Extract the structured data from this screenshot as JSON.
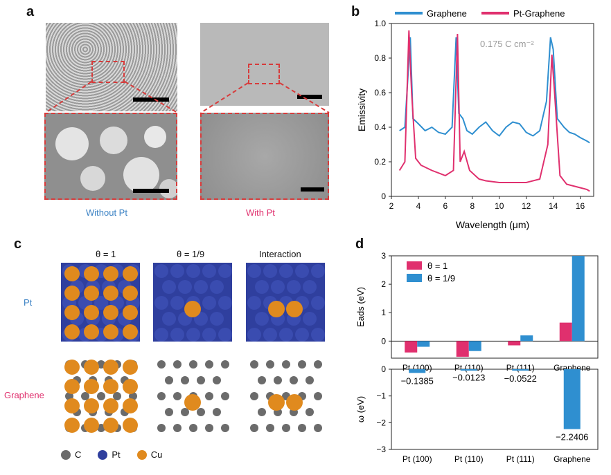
{
  "panels": {
    "a": "a",
    "b": "b",
    "c": "c",
    "d": "d"
  },
  "panel_a": {
    "caption_left": "Without Pt",
    "caption_right": "With Pt",
    "caption_left_color": "#3b82c4",
    "caption_right_color": "#e0306e"
  },
  "panel_c": {
    "col_headers": [
      "θ = 1",
      "θ = 1/9",
      "Interaction"
    ],
    "row_labels": [
      "Pt",
      "Graphene"
    ],
    "row_colors": [
      "#3b82c4",
      "#e0306e"
    ],
    "legend": [
      "C",
      "Pt",
      "Cu"
    ],
    "legend_colors": [
      "#6b6b6b",
      "#2f3f9e",
      "#e08a1e"
    ]
  },
  "chart_data": [
    {
      "type": "line",
      "series": [
        {
          "name": "Graphene",
          "color": "#2f8fd0",
          "x": [
            2.6,
            3.0,
            3.4,
            3.6,
            4.0,
            4.5,
            5.0,
            5.5,
            6.0,
            6.5,
            6.8,
            7.0,
            7.3,
            7.6,
            8.0,
            8.5,
            9.0,
            9.5,
            10.0,
            10.5,
            11.0,
            11.5,
            12.0,
            12.5,
            13.0,
            13.5,
            13.8,
            14.0,
            14.3,
            14.8,
            15.2,
            15.6,
            16.0,
            16.5,
            16.7
          ],
          "y": [
            0.38,
            0.4,
            0.92,
            0.45,
            0.42,
            0.38,
            0.4,
            0.37,
            0.36,
            0.4,
            0.92,
            0.48,
            0.45,
            0.38,
            0.36,
            0.4,
            0.43,
            0.38,
            0.35,
            0.4,
            0.43,
            0.42,
            0.37,
            0.35,
            0.38,
            0.55,
            0.92,
            0.85,
            0.45,
            0.4,
            0.37,
            0.36,
            0.34,
            0.32,
            0.31
          ]
        },
        {
          "name": "Pt-Graphene",
          "color": "#e0306e",
          "x": [
            2.6,
            3.0,
            3.3,
            3.5,
            3.8,
            4.2,
            5.0,
            6.0,
            6.6,
            6.9,
            7.1,
            7.4,
            7.8,
            8.5,
            9.0,
            10.0,
            11.0,
            12.0,
            13.0,
            13.6,
            13.9,
            14.1,
            14.5,
            15.0,
            16.0,
            16.5,
            16.7
          ],
          "y": [
            0.15,
            0.2,
            0.96,
            0.6,
            0.22,
            0.18,
            0.15,
            0.12,
            0.15,
            0.94,
            0.2,
            0.26,
            0.15,
            0.1,
            0.09,
            0.08,
            0.08,
            0.08,
            0.1,
            0.3,
            0.82,
            0.6,
            0.12,
            0.07,
            0.05,
            0.04,
            0.03
          ]
        }
      ],
      "xlabel": "Wavelength (μm)",
      "ylabel": "Emissivity",
      "xlim": [
        2,
        17
      ],
      "ylim": [
        0,
        1.0
      ],
      "xticks": [
        "2",
        "4",
        "6",
        "8",
        "10",
        "12",
        "14",
        "16"
      ],
      "yticks": [
        "0",
        "0.2",
        "0.4",
        "0.6",
        "0.8",
        "1.0"
      ],
      "annotation": "0.175 C cm⁻²",
      "legend_position": "top"
    },
    {
      "type": "bar",
      "categories": [
        "Pt (100)",
        "Pt (110)",
        "Pt (111)",
        "Graphene"
      ],
      "series": [
        {
          "name": "θ = 1",
          "color": "#e0306e",
          "values": [
            -0.4,
            -0.55,
            -0.15,
            0.65
          ]
        },
        {
          "name": "θ = 1/9",
          "color": "#2f8fd0",
          "values": [
            -0.2,
            -0.35,
            0.2,
            3.0
          ]
        }
      ],
      "ylabel": "Eads (eV)",
      "ylim": [
        -0.6,
        3
      ],
      "yticks": [
        "0",
        "1",
        "2",
        "3"
      ],
      "legend_position": "top-left"
    },
    {
      "type": "bar",
      "categories": [
        "Pt (100)",
        "Pt (110)",
        "Pt (111)",
        "Graphene"
      ],
      "series": [
        {
          "name": "ω",
          "color": "#2f8fd0",
          "values": [
            -0.1385,
            -0.0123,
            -0.0522,
            -2.2406
          ]
        }
      ],
      "value_labels": [
        "−0.1385",
        "−0.0123",
        "−0.0522",
        "−2.2406"
      ],
      "ylabel": "ω (eV)",
      "ylim": [
        -3,
        0
      ],
      "yticks": [
        "0",
        "−1",
        "−2",
        "−3"
      ]
    }
  ]
}
